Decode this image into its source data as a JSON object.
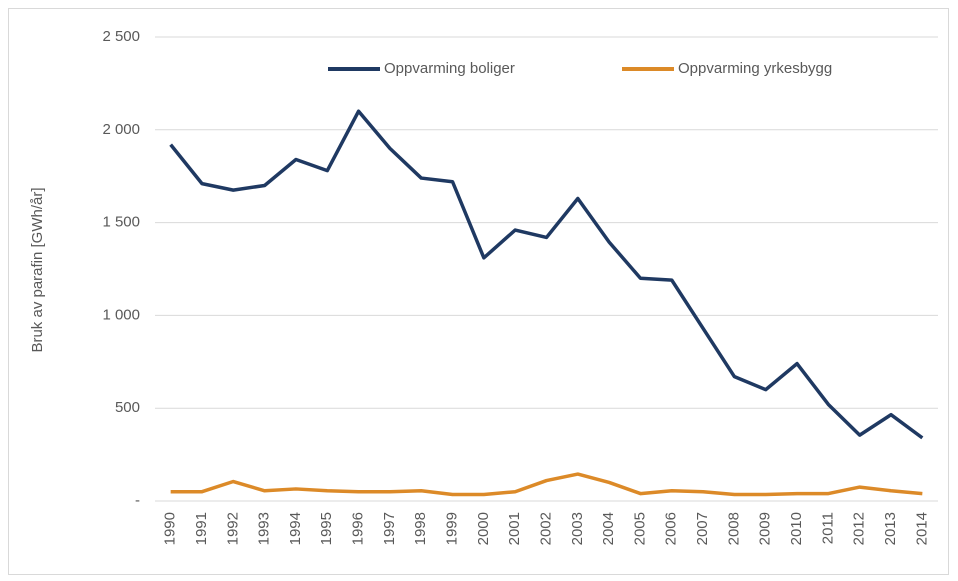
{
  "chart_data": {
    "type": "line",
    "y_label": "Bruk av parafin [GWh/år]",
    "categories": [
      "1990",
      "1991",
      "1992",
      "1993",
      "1994",
      "1995",
      "1996",
      "1997",
      "1998",
      "1999",
      "2000",
      "2001",
      "2002",
      "2003",
      "2004",
      "2005",
      "2006",
      "2007",
      "2008",
      "2009",
      "2010",
      "2011",
      "2012",
      "2013",
      "2014"
    ],
    "series": [
      {
        "name": "Oppvarming boliger",
        "color": "#1f3962",
        "values": [
          1920,
          1710,
          1675,
          1700,
          1840,
          1780,
          2100,
          1900,
          1740,
          1720,
          1310,
          1460,
          1420,
          1630,
          1395,
          1200,
          1190,
          930,
          670,
          600,
          740,
          520,
          355,
          465,
          340
        ]
      },
      {
        "name": "Oppvarming yrkesbygg",
        "color": "#dc8a28",
        "values": [
          50,
          50,
          105,
          55,
          65,
          55,
          50,
          50,
          55,
          35,
          35,
          50,
          110,
          145,
          100,
          40,
          55,
          50,
          35,
          35,
          40,
          40,
          75,
          55,
          40
        ]
      }
    ],
    "ylim": [
      0,
      2500
    ],
    "yticks": [
      {
        "value": 0,
        "label": "-"
      },
      500,
      {
        "value": 1000,
        "label": "1 000"
      },
      {
        "value": 1500,
        "label": "1 500"
      },
      {
        "value": 2000,
        "label": "2 000"
      },
      {
        "value": 2500,
        "label": "2 500"
      }
    ],
    "grid": true,
    "legend": "top"
  }
}
